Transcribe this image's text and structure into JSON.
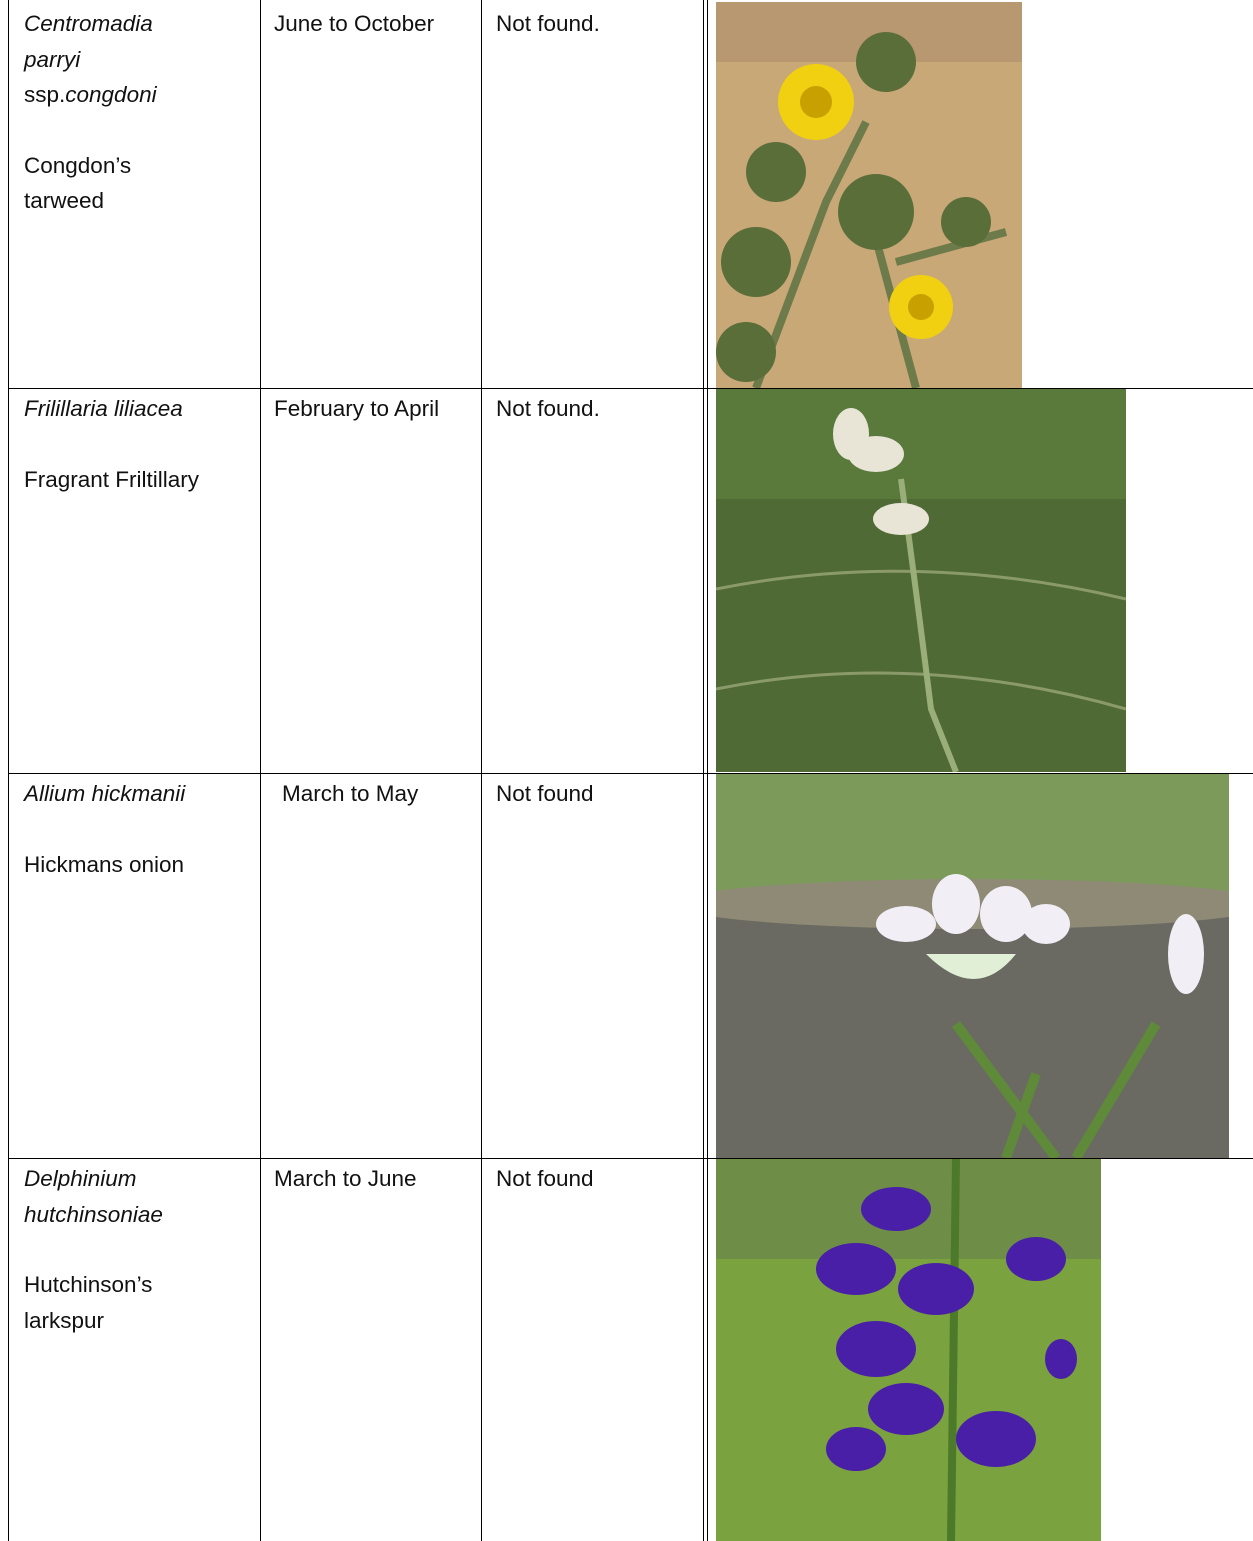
{
  "rows": [
    {
      "scientific_name": "Centromadia parryi",
      "subspecies_prefix": "ssp.",
      "subspecies": "congdoni",
      "common_name": "Congdon’s tarweed",
      "blooming_period": "June to October",
      "status": "Not found."
    },
    {
      "scientific_name": "Frilillaria liliacea",
      "common_name": "Fragrant Friltillary",
      "blooming_period": "February to April",
      "status": "Not found."
    },
    {
      "scientific_name": "Allium hickmanii",
      "common_name": "Hickmans onion",
      "blooming_period": "March to May",
      "status": "Not found"
    },
    {
      "scientific_name": "Delphinium hutchinsoniae",
      "common_name": "Hutchinson’s larkspur",
      "blooming_period": "March to June",
      "status": "Not found"
    }
  ]
}
